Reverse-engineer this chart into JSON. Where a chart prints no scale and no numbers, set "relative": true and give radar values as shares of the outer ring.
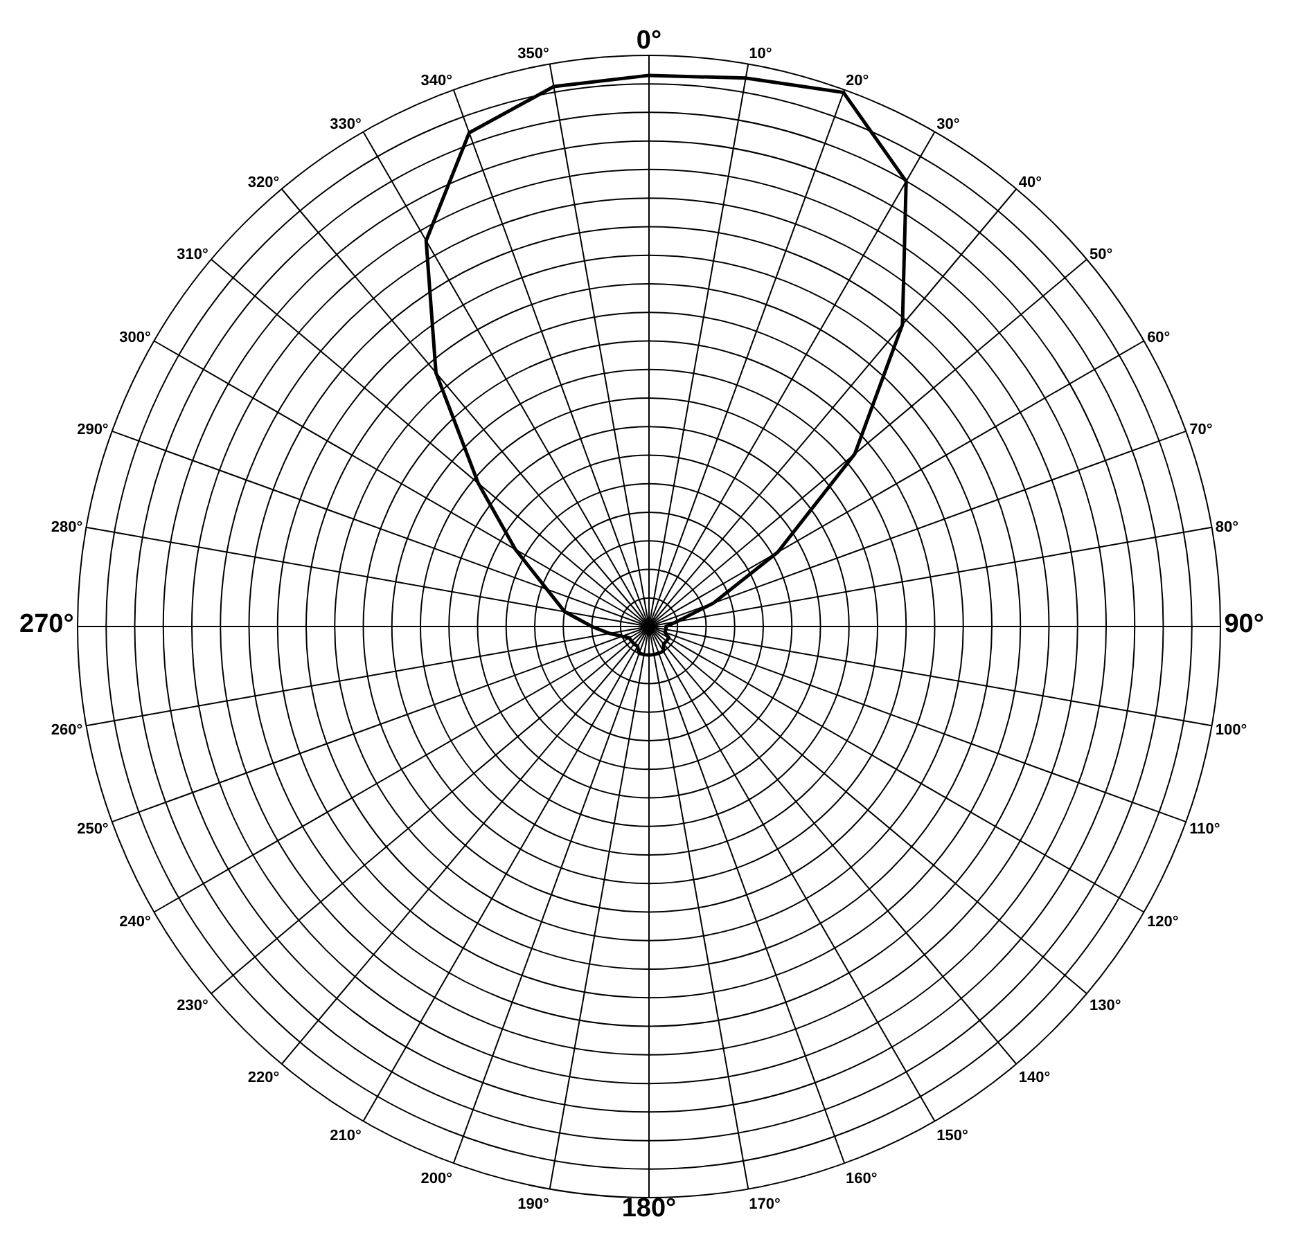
{
  "chart_data": {
    "type": "radar",
    "relative": true,
    "grid": true,
    "marker": "none",
    "line_style": "solid",
    "categories": [
      "0°",
      "10°",
      "20°",
      "30°",
      "40°",
      "50°",
      "60°",
      "70°",
      "80°",
      "90°",
      "100°",
      "110°",
      "120°",
      "130°",
      "140°",
      "150°",
      "160°",
      "170°",
      "180°",
      "190°",
      "200°",
      "210°",
      "220°",
      "230°",
      "240°",
      "250°",
      "260°",
      "270°",
      "280°",
      "290°",
      "300°",
      "310°",
      "320°",
      "330°",
      "340°",
      "350°"
    ],
    "series": [
      {
        "color": "#000000",
        "values": [
          0.965,
          0.975,
          0.995,
          0.9,
          0.69,
          0.47,
          0.26,
          0.12,
          0.05,
          0.03,
          0.03,
          0.03,
          0.04,
          0.04,
          0.04,
          0.05,
          0.05,
          0.05,
          0.05,
          0.05,
          0.05,
          0.04,
          0.04,
          0.04,
          0.04,
          0.05,
          0.07,
          0.1,
          0.15,
          0.19,
          0.27,
          0.39,
          0.58,
          0.78,
          0.92,
          0.96
        ]
      }
    ]
  }
}
